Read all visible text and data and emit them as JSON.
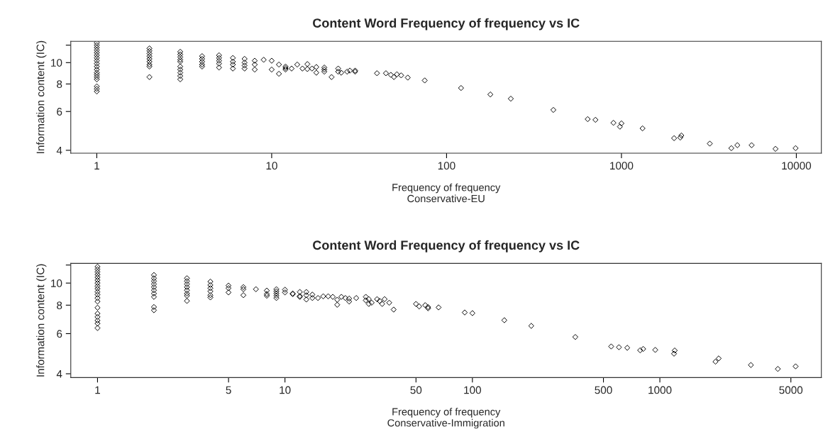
{
  "chart_data": [
    {
      "type": "scatter",
      "title": "Content Word Frequency of frequency vs IC",
      "xlabel": "Frequency of frequency\nConservative-EU",
      "ylabel": "Information content (IC)",
      "log": "xy",
      "marker": "diamond",
      "grid": false,
      "legend": false,
      "xlim": [
        0.71,
        13900
      ],
      "ylim": [
        3.88,
        12.5
      ],
      "xticks": [
        1,
        10,
        100,
        1000,
        10000
      ],
      "yticks": [
        4,
        6,
        8,
        10,
        {
          "value": 12,
          "label": null
        }
      ],
      "series": [
        {
          "color": "#000000",
          "x": [
            1,
            1,
            1,
            1,
            1,
            1,
            1,
            1,
            1,
            1,
            1,
            1,
            1,
            1,
            1,
            1,
            1,
            1,
            2,
            2,
            2,
            2,
            2,
            2,
            2,
            2,
            2,
            3,
            3,
            3,
            3,
            3,
            3,
            3,
            3,
            3,
            3,
            4,
            4,
            4,
            4,
            4,
            5,
            5,
            5,
            5,
            5,
            6,
            6,
            6,
            6,
            7,
            7,
            7,
            7,
            8,
            8,
            8,
            9,
            10,
            10,
            11,
            11,
            12,
            12,
            12,
            13,
            14,
            15,
            16,
            16,
            17,
            18,
            18,
            20,
            20,
            20,
            22,
            24,
            24,
            25,
            27,
            28,
            30,
            30,
            40,
            45,
            48,
            50,
            52,
            55,
            60,
            75,
            121,
            178,
            233,
            408,
            641,
            710,
            900,
            1000,
            980,
            1320,
            2000,
            2170,
            2200,
            3200,
            4250,
            4600,
            5550,
            7600,
            9900
          ],
          "values": [
            12.3,
            12.0,
            11.7,
            11.4,
            11.1,
            10.8,
            10.5,
            10.2,
            9.9,
            9.6,
            9.3,
            9.0,
            8.8,
            8.6,
            8.4,
            7.8,
            7.6,
            7.4,
            11.6,
            11.3,
            11.0,
            10.7,
            10.4,
            10.1,
            9.8,
            9.6,
            8.6,
            11.2,
            10.9,
            10.6,
            10.3,
            10.1,
            9.6,
            9.3,
            9.0,
            8.7,
            8.4,
            10.7,
            10.4,
            10.1,
            9.8,
            9.6,
            10.8,
            10.5,
            10.2,
            9.9,
            9.5,
            10.5,
            10.1,
            9.8,
            9.4,
            10.4,
            10.0,
            9.7,
            9.4,
            10.2,
            9.8,
            9.3,
            10.3,
            10.2,
            9.3,
            9.8,
            8.9,
            9.6,
            9.45,
            9.3,
            9.4,
            9.8,
            9.4,
            9.85,
            9.35,
            9.4,
            9.55,
            9.0,
            9.5,
            9.3,
            9.1,
            8.6,
            9.4,
            9.1,
            9.0,
            9.1,
            9.2,
            9.2,
            9.1,
            8.95,
            8.95,
            8.8,
            8.6,
            8.85,
            8.75,
            8.55,
            8.3,
            7.67,
            7.17,
            6.86,
            6.1,
            5.54,
            5.5,
            5.33,
            5.3,
            5.12,
            5.03,
            4.54,
            4.57,
            4.67,
            4.29,
            4.09,
            4.22,
            4.22,
            4.06,
            4.09
          ]
        }
      ]
    },
    {
      "type": "scatter",
      "title": "Content Word Frequency of frequency vs IC",
      "xlabel": "Frequency of frequency\nConservative-Immigration",
      "ylabel": "Information content (IC)",
      "log": "xy",
      "marker": "diamond",
      "grid": false,
      "legend": false,
      "xlim": [
        0.72,
        7270
      ],
      "ylim": [
        3.85,
        12.2
      ],
      "xticks": [
        1,
        5,
        10,
        50,
        100,
        500,
        1000,
        5000
      ],
      "yticks": [
        4,
        6,
        8,
        10,
        {
          "value": 12,
          "label": null
        }
      ],
      "series": [
        {
          "color": "#000000",
          "x": [
            1,
            1,
            1,
            1,
            1,
            1,
            1,
            1,
            1,
            1,
            1,
            1,
            1,
            1,
            1,
            1,
            1,
            1,
            1,
            2,
            2,
            2,
            2,
            2,
            2,
            2,
            2,
            2,
            2,
            3,
            3,
            3,
            3,
            3,
            3,
            3,
            3,
            4,
            4,
            4,
            4,
            4,
            4,
            5,
            5,
            5,
            6,
            6,
            6,
            7,
            8,
            8,
            8,
            9,
            9,
            9,
            9,
            9,
            10,
            10,
            11,
            11,
            12,
            12,
            12,
            13,
            13,
            13,
            14,
            14,
            15,
            16,
            17,
            18,
            19,
            19,
            20,
            21,
            22,
            22,
            24,
            27,
            27,
            28,
            28,
            29,
            31,
            32,
            33,
            34,
            36,
            38,
            50,
            52,
            56,
            58,
            58,
            66,
            91,
            100,
            148,
            206,
            354,
            550,
            605,
            670,
            785,
            815,
            945,
            1200,
            1190,
            1980,
            2060,
            3060,
            4260,
            5300
          ],
          "values": [
            11.8,
            11.5,
            11.2,
            10.9,
            10.6,
            10.3,
            10.0,
            9.7,
            9.45,
            9.15,
            8.9,
            8.6,
            8.3,
            7.8,
            7.35,
            7.1,
            6.85,
            6.65,
            6.35,
            10.85,
            10.5,
            10.2,
            9.9,
            9.6,
            9.3,
            9.0,
            8.7,
            7.85,
            7.6,
            10.5,
            10.2,
            9.9,
            9.6,
            9.3,
            9.0,
            8.8,
            8.35,
            10.15,
            9.8,
            9.5,
            9.2,
            8.85,
            8.65,
            9.75,
            9.5,
            9.1,
            9.6,
            9.4,
            8.85,
            9.4,
            9.27,
            8.95,
            8.8,
            9.4,
            9.2,
            9.0,
            8.8,
            8.6,
            9.35,
            9.1,
            9.0,
            8.95,
            9.14,
            8.77,
            8.7,
            9.14,
            8.84,
            8.47,
            8.9,
            8.6,
            8.6,
            8.75,
            8.75,
            8.7,
            8.45,
            8.03,
            8.7,
            8.6,
            8.55,
            8.3,
            8.6,
            8.7,
            8.4,
            8.5,
            8.1,
            8.2,
            8.5,
            8.35,
            8.1,
            8.5,
            8.2,
            7.65,
            8.1,
            7.9,
            8.0,
            7.85,
            7.75,
            7.82,
            7.43,
            7.38,
            6.87,
            6.49,
            5.8,
            5.27,
            5.23,
            5.2,
            5.07,
            5.14,
            5.09,
            5.06,
            4.9,
            4.52,
            4.67,
            4.37,
            4.2,
            4.31
          ]
        }
      ]
    }
  ]
}
